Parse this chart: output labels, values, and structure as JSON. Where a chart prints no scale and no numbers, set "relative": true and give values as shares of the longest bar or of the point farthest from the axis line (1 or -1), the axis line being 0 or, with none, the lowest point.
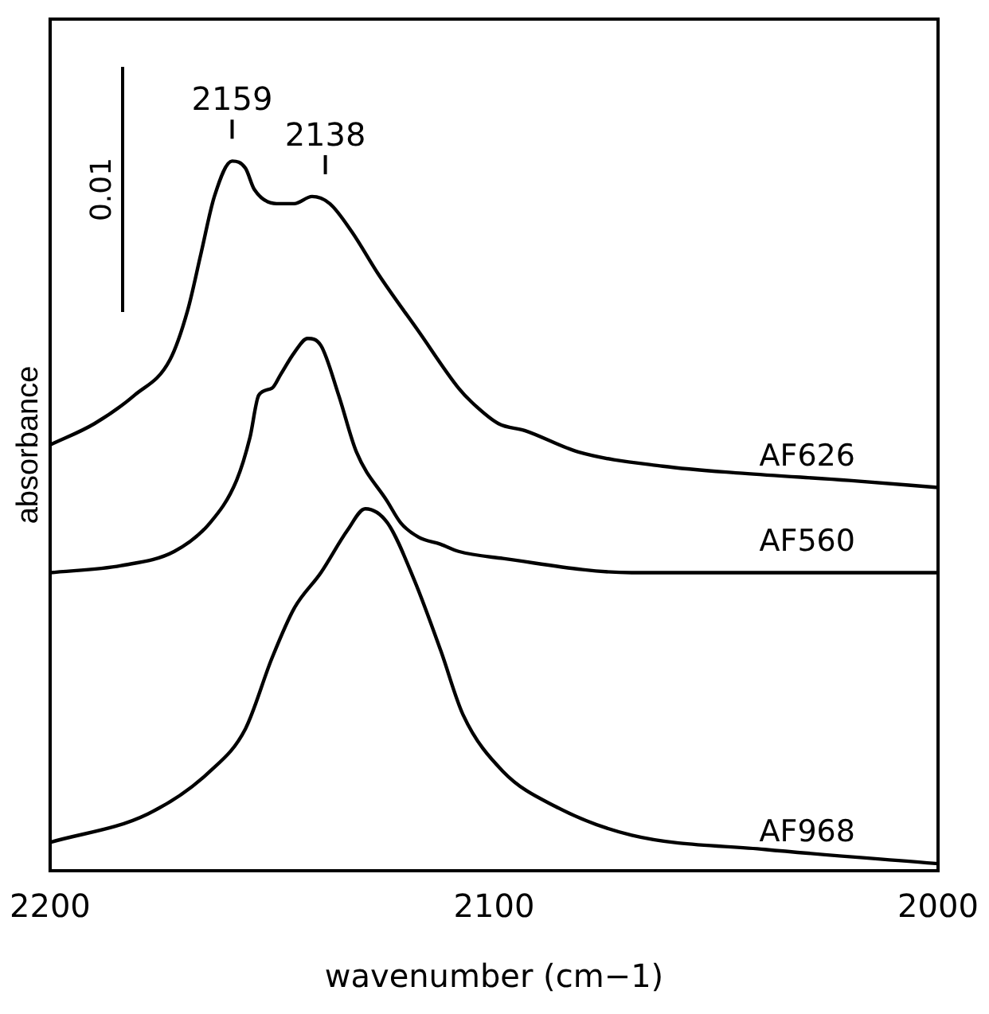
{
  "chart_data": {
    "type": "line",
    "xlabel": "wavenumber (cm−1)",
    "ylabel": "absorbance",
    "relative": true,
    "xlim": [
      2200,
      2000
    ],
    "xticks": [
      2200,
      2100,
      2000
    ],
    "grid": false,
    "legend": false,
    "marker": "none",
    "line_style": "solid",
    "series": [
      {
        "name": "AF626",
        "color": "#000000",
        "x": [
          2200,
          2190,
          2181,
          2173,
          2169,
          2166,
          2163,
          2159,
          2156,
          2154,
          2149,
          2145,
          2141,
          2137,
          2132,
          2126,
          2117,
          2108,
          2105,
          2099,
          2093,
          2081,
          2062,
          2044,
          2020,
          2000
        ],
        "values": [
          0.6,
          0.63,
          0.67,
          0.72,
          0.79,
          0.87,
          0.95,
          1.0,
          0.99,
          0.96,
          0.94,
          0.94,
          0.95,
          0.94,
          0.9,
          0.84,
          0.76,
          0.68,
          0.66,
          0.63,
          0.62,
          0.59,
          0.57,
          0.56,
          0.55,
          0.54
        ]
      },
      {
        "name": "AF560",
        "color": "#000000",
        "x": [
          2200,
          2184,
          2172,
          2164,
          2158,
          2155,
          2153,
          2150,
          2148,
          2145,
          2142,
          2139,
          2135,
          2131,
          2124,
          2121,
          2117,
          2112,
          2108,
          2098,
          2069,
          2039,
          2000
        ],
        "values": [
          0.42,
          0.43,
          0.45,
          0.49,
          0.55,
          0.61,
          0.67,
          0.68,
          0.7,
          0.73,
          0.75,
          0.74,
          0.67,
          0.59,
          0.52,
          0.49,
          0.47,
          0.46,
          0.45,
          0.44,
          0.42,
          0.42,
          0.42
        ]
      },
      {
        "name": "AF968",
        "color": "#000000",
        "x": [
          2200,
          2178,
          2164,
          2156,
          2150,
          2145,
          2139,
          2133,
          2129,
          2124,
          2118,
          2112,
          2107,
          2098,
          2086,
          2069,
          2039,
          2000
        ],
        "values": [
          0.04,
          0.08,
          0.14,
          0.2,
          0.3,
          0.37,
          0.42,
          0.48,
          0.51,
          0.49,
          0.41,
          0.31,
          0.22,
          0.14,
          0.09,
          0.05,
          0.03,
          0.01
        ]
      }
    ],
    "annotations": [
      {
        "text": "2159",
        "x": 2159,
        "y": 1.0
      },
      {
        "text": "2138",
        "x": 2138,
        "y": 0.95
      },
      "0.01"
    ]
  }
}
